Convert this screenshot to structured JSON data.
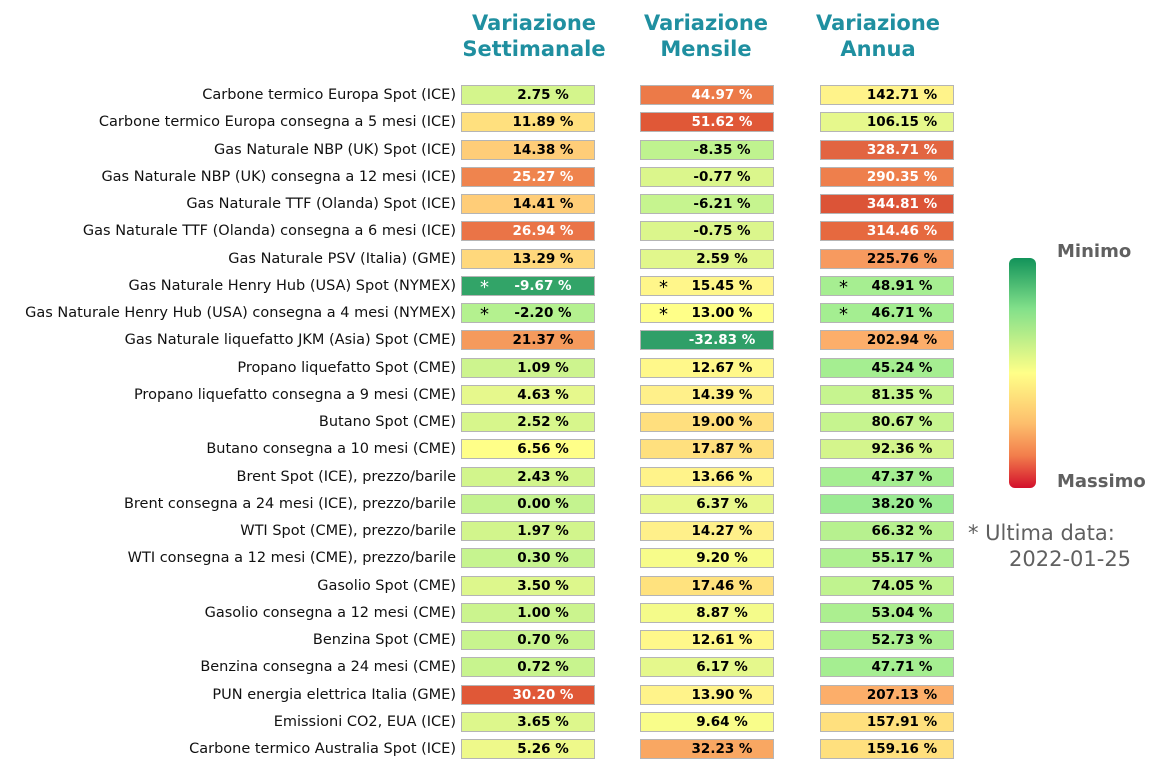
{
  "columns": [
    {
      "line1": "Variazione",
      "line2": "Settimanale"
    },
    {
      "line1": "Variazione",
      "line2": "Mensile"
    },
    {
      "line1": "Variazione",
      "line2": "Annua"
    }
  ],
  "chart_data": {
    "type": "heatmap",
    "title": "",
    "columns": [
      "Variazione Settimanale",
      "Variazione Mensile",
      "Variazione Annua"
    ],
    "rows": [
      {
        "label": "Carbone termico Europa Spot (ICE)",
        "values": [
          "2.75 %",
          "44.97 %",
          "142.71 %"
        ],
        "colors": [
          "#d4f58c",
          "#ec7a48",
          "#fff38a"
        ],
        "stars": [
          false,
          false,
          false
        ],
        "light": [
          false,
          true,
          false
        ]
      },
      {
        "label": "Carbone termico Europa consegna a 5 mesi (ICE)",
        "values": [
          "11.89 %",
          "51.62 %",
          "106.15 %"
        ],
        "colors": [
          "#ffe07e",
          "#e05837",
          "#e6f88c"
        ],
        "stars": [
          false,
          false,
          false
        ],
        "light": [
          false,
          true,
          false
        ]
      },
      {
        "label": "Gas Naturale NBP (UK) Spot (ICE)",
        "values": [
          "14.38 %",
          "-8.35 %",
          "328.71 %"
        ],
        "colors": [
          "#ffcd78",
          "#bff38f",
          "#e26541"
        ],
        "stars": [
          false,
          false,
          false
        ],
        "light": [
          false,
          false,
          true
        ]
      },
      {
        "label": "Gas Naturale NBP (UK) consegna a 12 mesi (ICE)",
        "values": [
          "25.27 %",
          "-0.77 %",
          "290.35 %"
        ],
        "colors": [
          "#ef844e",
          "#dbf68c",
          "#ee7f4c"
        ],
        "stars": [
          false,
          false,
          false
        ],
        "light": [
          true,
          false,
          true
        ]
      },
      {
        "label": "Gas Naturale TTF (Olanda) Spot (ICE)",
        "values": [
          "14.41 %",
          "-6.21 %",
          "344.81 %"
        ],
        "colors": [
          "#ffcd78",
          "#c6f48f",
          "#dc5437"
        ],
        "stars": [
          false,
          false,
          false
        ],
        "light": [
          false,
          false,
          true
        ]
      },
      {
        "label": "Gas Naturale TTF (Olanda) consegna a 6 mesi (ICE)",
        "values": [
          "26.94 %",
          "-0.75 %",
          "314.46 %"
        ],
        "colors": [
          "#ea7447",
          "#dbf68c",
          "#e6693f"
        ],
        "stars": [
          false,
          false,
          false
        ],
        "light": [
          true,
          false,
          true
        ]
      },
      {
        "label": "Gas Naturale PSV (Italia) (GME)",
        "values": [
          "13.29 %",
          "2.59 %",
          "225.76 %"
        ],
        "colors": [
          "#ffd87c",
          "#e1f78c",
          "#f79a5f"
        ],
        "stars": [
          false,
          false,
          false
        ],
        "light": [
          false,
          false,
          false
        ]
      },
      {
        "label": "Gas Naturale Henry Hub (USA) Spot (NYMEX)",
        "values": [
          "-9.67 %",
          "15.45 %",
          "48.91 %"
        ],
        "colors": [
          "#32a468",
          "#fff68a",
          "#a6ee91"
        ],
        "stars": [
          true,
          true,
          true
        ],
        "light": [
          true,
          false,
          false
        ]
      },
      {
        "label": "Gas Naturale Henry Hub (USA) consegna a 4 mesi (NYMEX)",
        "values": [
          "-2.20 %",
          "13.00 %",
          "46.71 %"
        ],
        "colors": [
          "#b4f18f",
          "#ffff88",
          "#a4ee91"
        ],
        "stars": [
          true,
          true,
          true
        ],
        "light": [
          false,
          false,
          false
        ]
      },
      {
        "label": "Gas Naturale liquefatto JKM (Asia) Spot (CME)",
        "values": [
          "21.37 %",
          "-32.83 %",
          "202.94 %"
        ],
        "colors": [
          "#f59a5c",
          "#2f9f68",
          "#fcae6a"
        ],
        "stars": [
          false,
          false,
          false
        ],
        "light": [
          false,
          true,
          false
        ]
      },
      {
        "label": "Propano liquefatto Spot (CME)",
        "values": [
          "1.09 %",
          "12.67 %",
          "45.24 %"
        ],
        "colors": [
          "#cdf48e",
          "#fff88a",
          "#a5ee91"
        ],
        "stars": [
          false,
          false,
          false
        ],
        "light": [
          false,
          false,
          false
        ]
      },
      {
        "label": "Propano liquefatto consegna a 9 mesi (CME)",
        "values": [
          "4.63 %",
          "14.39 %",
          "81.35 %"
        ],
        "colors": [
          "#e6f88c",
          "#fff08a",
          "#c6f48f"
        ],
        "stars": [
          false,
          false,
          false
        ],
        "light": [
          false,
          false,
          false
        ]
      },
      {
        "label": "Butano Spot (CME)",
        "values": [
          "2.52 %",
          "19.00 %",
          "80.67 %"
        ],
        "colors": [
          "#d7f68c",
          "#ffdf7e",
          "#c6f48f"
        ],
        "stars": [
          false,
          false,
          false
        ],
        "light": [
          false,
          false,
          false
        ]
      },
      {
        "label": "Butano consegna a 10 mesi (CME)",
        "values": [
          "6.56 %",
          "17.87 %",
          "92.36 %"
        ],
        "colors": [
          "#ffff88",
          "#ffe07e",
          "#d4f58c"
        ],
        "stars": [
          false,
          false,
          false
        ],
        "light": [
          false,
          false,
          false
        ]
      },
      {
        "label": "Brent Spot (ICE), prezzo/barile",
        "values": [
          "2.43 %",
          "13.66 %",
          "47.37 %"
        ],
        "colors": [
          "#d2f58c",
          "#fff38a",
          "#a5ee91"
        ],
        "stars": [
          false,
          false,
          false
        ],
        "light": [
          false,
          false,
          false
        ]
      },
      {
        "label": "Brent consegna a 24 mesi (ICE), prezzo/barile",
        "values": [
          "0.00 %",
          "6.37 %",
          "38.20 %"
        ],
        "colors": [
          "#c4f38f",
          "#e8f88c",
          "#9beb92"
        ],
        "stars": [
          false,
          false,
          false
        ],
        "light": [
          false,
          false,
          false
        ]
      },
      {
        "label": "WTI Spot (CME), prezzo/barile",
        "values": [
          "1.97 %",
          "14.27 %",
          "66.32 %"
        ],
        "colors": [
          "#d2f58c",
          "#fff08a",
          "#b7f18f"
        ],
        "stars": [
          false,
          false,
          false
        ],
        "light": [
          false,
          false,
          false
        ]
      },
      {
        "label": "WTI consegna a 12 mesi (CME), prezzo/barile",
        "values": [
          "0.30 %",
          "9.20 %",
          "55.17 %"
        ],
        "colors": [
          "#c6f48f",
          "#f7fc8a",
          "#aef090"
        ],
        "stars": [
          false,
          false,
          false
        ],
        "light": [
          false,
          false,
          false
        ]
      },
      {
        "label": "Gasolio Spot (CME)",
        "values": [
          "3.50 %",
          "17.46 %",
          "74.05 %"
        ],
        "colors": [
          "#ddf78c",
          "#ffe27e",
          "#c0f38f"
        ],
        "stars": [
          false,
          false,
          false
        ],
        "light": [
          false,
          false,
          false
        ]
      },
      {
        "label": "Gasolio consegna a 12 mesi (CME)",
        "values": [
          "1.00 %",
          "8.87 %",
          "53.04 %"
        ],
        "colors": [
          "#cbf48e",
          "#f4fb8a",
          "#acef90"
        ],
        "stars": [
          false,
          false,
          false
        ],
        "light": [
          false,
          false,
          false
        ]
      },
      {
        "label": "Benzina Spot (CME)",
        "values": [
          "0.70 %",
          "12.61 %",
          "52.73 %"
        ],
        "colors": [
          "#c8f48e",
          "#fff88a",
          "#abef90"
        ],
        "stars": [
          false,
          false,
          false
        ],
        "light": [
          false,
          false,
          false
        ]
      },
      {
        "label": "Benzina consegna a 24 mesi (CME)",
        "values": [
          "0.72 %",
          "6.17 %",
          "47.71 %"
        ],
        "colors": [
          "#c8f48e",
          "#e5f88c",
          "#a5ee91"
        ],
        "stars": [
          false,
          false,
          false
        ],
        "light": [
          false,
          false,
          false
        ]
      },
      {
        "label": "PUN energia elettrica Italia (GME)",
        "values": [
          "30.20 %",
          "13.90 %",
          "207.13 %"
        ],
        "colors": [
          "#e05837",
          "#fff38a",
          "#fcae6a"
        ],
        "stars": [
          false,
          false,
          false
        ],
        "light": [
          true,
          false,
          false
        ]
      },
      {
        "label": "Emissioni CO2, EUA (ICE)",
        "values": [
          "3.65 %",
          "9.64 %",
          "157.91 %"
        ],
        "colors": [
          "#ddf78c",
          "#f9fd8a",
          "#ffe07e"
        ],
        "stars": [
          false,
          false,
          false
        ],
        "light": [
          false,
          false,
          false
        ]
      },
      {
        "label": "Carbone termico Australia Spot (ICE)",
        "values": [
          "5.26 %",
          "32.23 %",
          "159.16 %"
        ],
        "colors": [
          "#eef98a",
          "#f9a762",
          "#ffe07e"
        ],
        "stars": [
          false,
          false,
          false
        ],
        "light": [
          false,
          false,
          false
        ]
      }
    ],
    "legend": {
      "top_label": "Minimo",
      "bottom_label": "Massimo",
      "gradient": [
        "#12935a",
        "#ffff88",
        "#d3102c"
      ]
    }
  },
  "note": {
    "line1": "* Ultima data:",
    "line2": "2022-01-25"
  }
}
